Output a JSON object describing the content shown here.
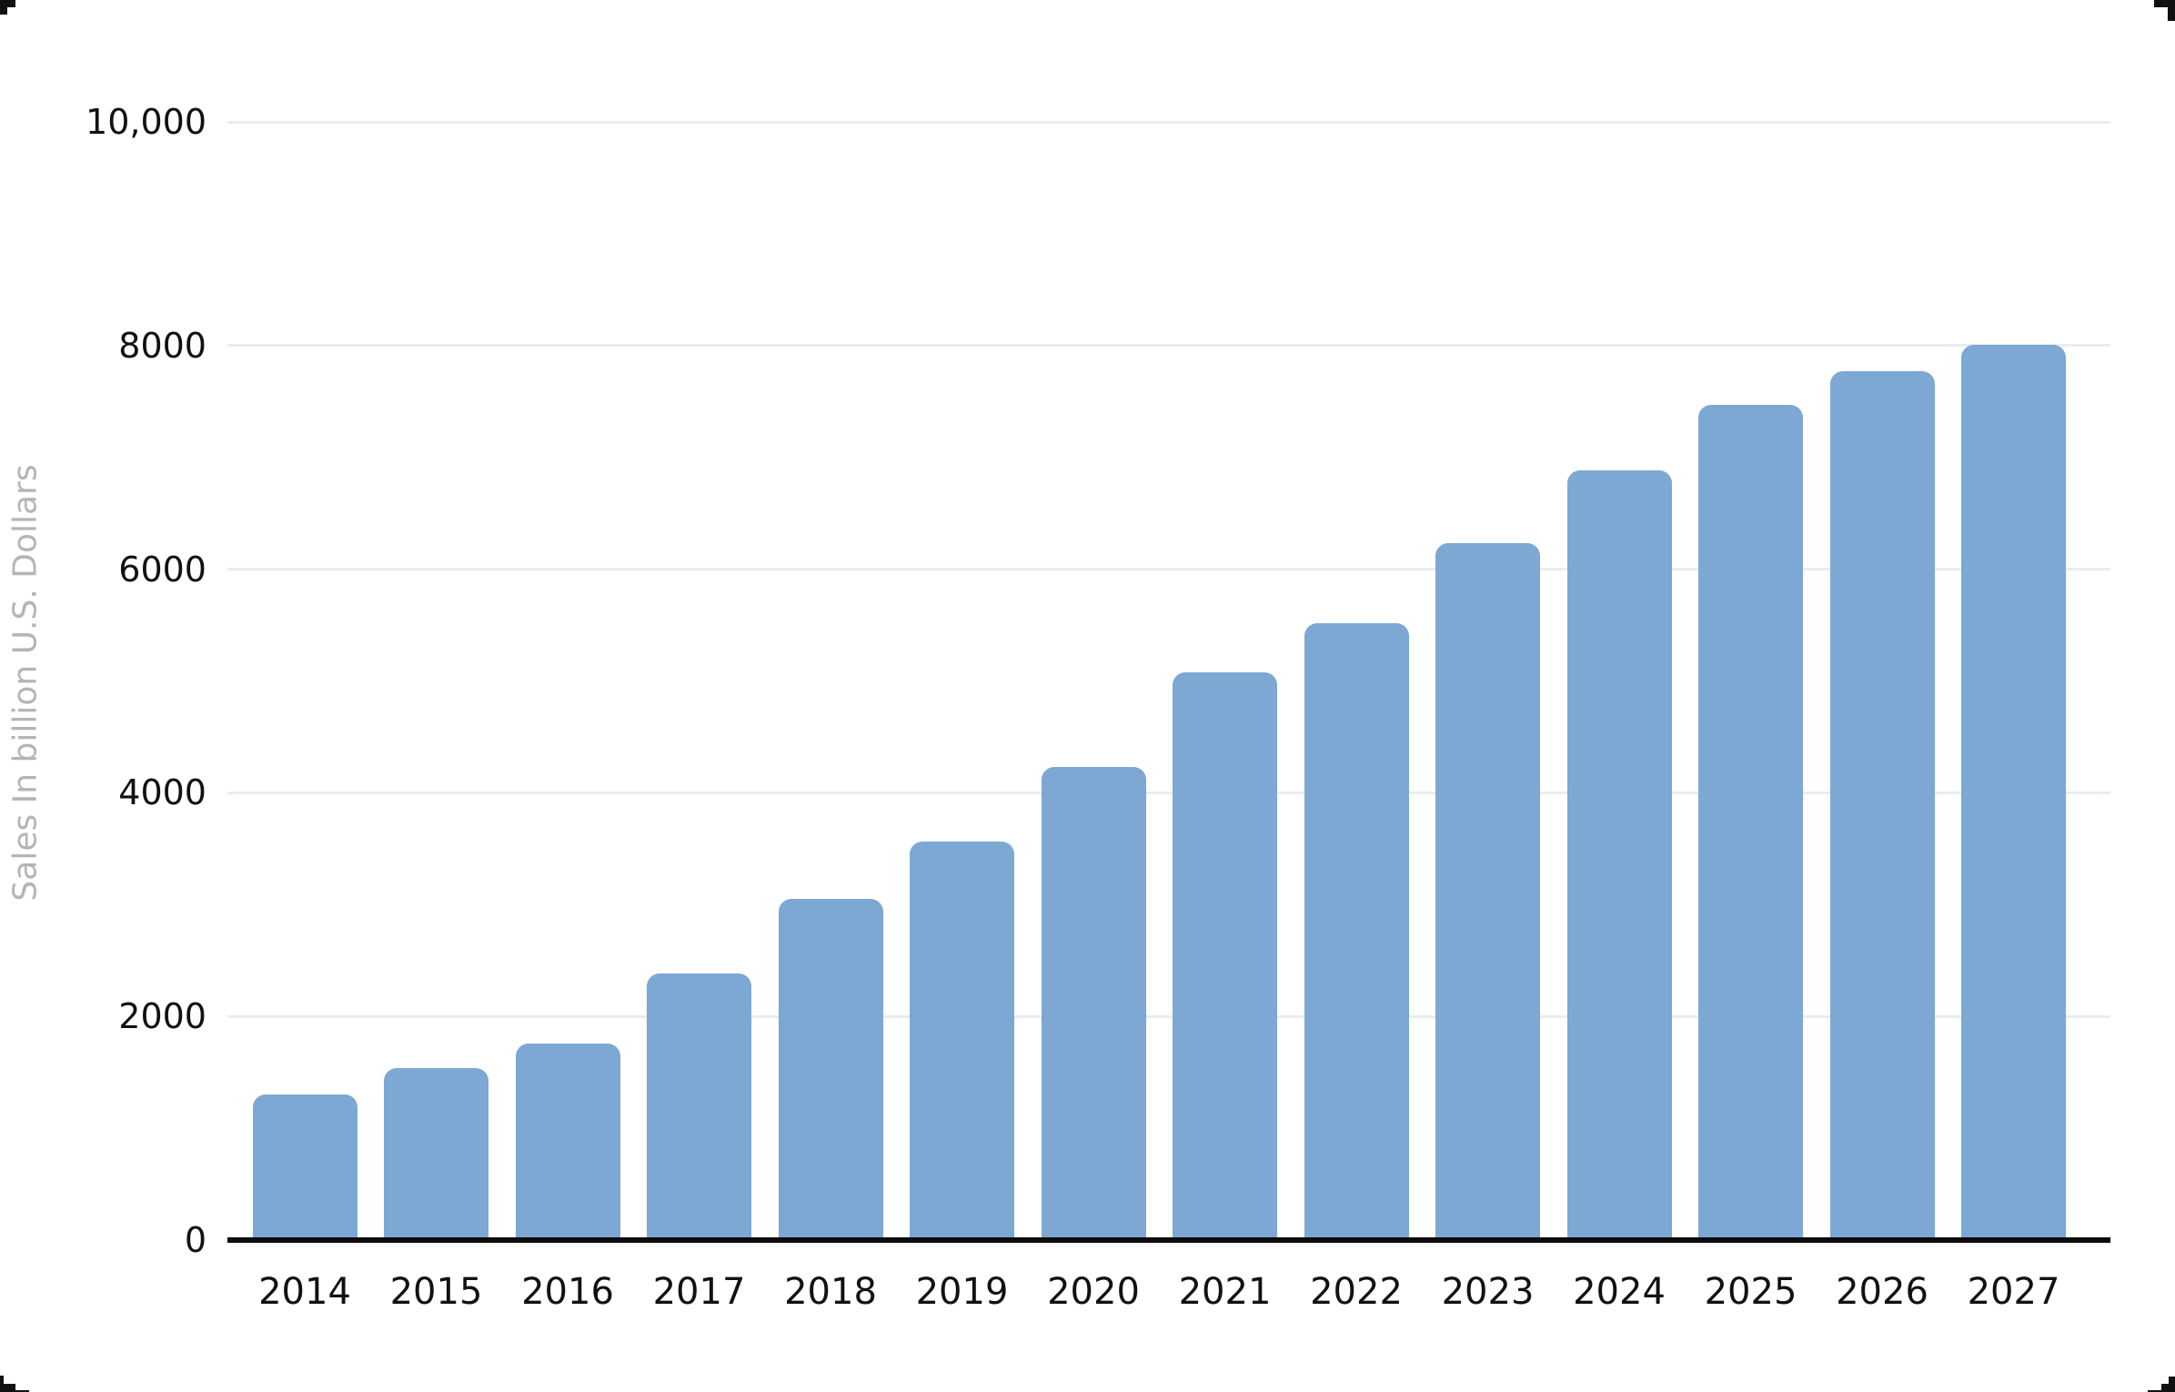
{
  "chart_data": {
    "type": "bar",
    "title": "",
    "xlabel": "",
    "ylabel": "Sales In billion U.S. Dollars",
    "categories": [
      "2014",
      "2015",
      "2016",
      "2017",
      "2018",
      "2019",
      "2020",
      "2021",
      "2022",
      "2023",
      "2024",
      "2025",
      "2026",
      "2027"
    ],
    "values": [
      1300,
      1540,
      1760,
      2380,
      3050,
      3560,
      4230,
      5080,
      5520,
      6230,
      6880,
      7470,
      7770,
      8010
    ],
    "ylim": [
      0,
      10000
    ],
    "y_ticks": [
      {
        "value": 0,
        "label": "0"
      },
      {
        "value": 2000,
        "label": "2000"
      },
      {
        "value": 4000,
        "label": "4000"
      },
      {
        "value": 6000,
        "label": "6000"
      },
      {
        "value": 8000,
        "label": "8000"
      },
      {
        "value": 10000,
        "label": "10,000"
      }
    ],
    "grid": "horizontal",
    "legend": "none",
    "bar_color": "#7CA8D3",
    "gridline_color": "#E8EDF3",
    "axis_line_color": "#0B0B0B",
    "tick_label_color": "#111111",
    "ylabel_color": "#B5B5B5",
    "background_color": "#FFFFFF"
  },
  "decorations": {
    "corner_marks_color": "#111111",
    "corner_marks": [
      {
        "name": "corner-mark-top-left",
        "rects": [
          [
            0,
            0,
            17,
            8
          ],
          [
            0,
            7,
            8,
            9
          ]
        ]
      },
      {
        "name": "corner-mark-top-right",
        "rects": [
          [
            2368,
            0,
            23,
            8
          ],
          [
            2383,
            8,
            8,
            15
          ]
        ]
      },
      {
        "name": "corner-mark-bottom-left",
        "rects": [
          [
            0,
            1512,
            4,
            10
          ],
          [
            0,
            1521,
            17,
            9
          ],
          [
            17,
            1528,
            15,
            2
          ]
        ]
      },
      {
        "name": "corner-mark-bottom-right",
        "rects": [
          [
            2384,
            1513,
            7,
            9
          ],
          [
            2376,
            1521,
            15,
            9
          ],
          [
            2361,
            1528,
            15,
            2
          ]
        ]
      }
    ]
  }
}
